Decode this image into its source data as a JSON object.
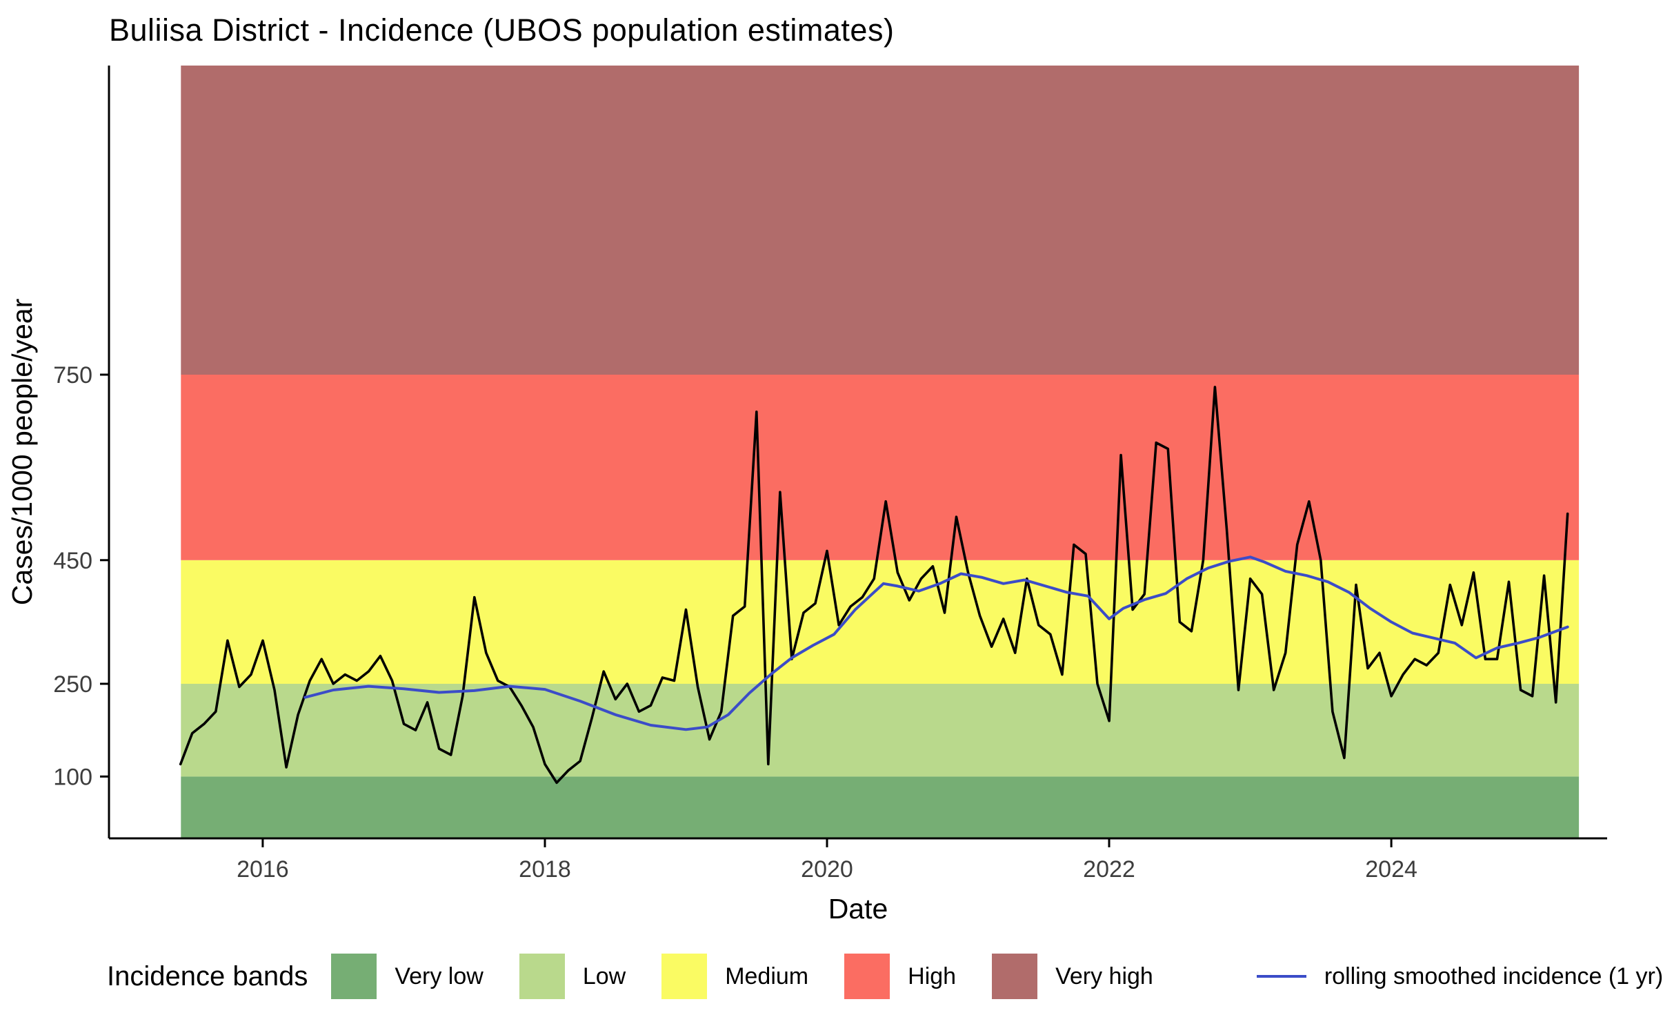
{
  "title": "Buliisa District - Incidence (UBOS population estimates)",
  "legend": {
    "title": "Incidence bands",
    "smoothed_label": "rolling smoothed incidence (1 yr)",
    "smoothed_line_color": "#3b4cc8"
  },
  "chart_data": {
    "type": "line",
    "title": "Buliisa District - Incidence (UBOS population estimates)",
    "xlabel": "Date",
    "ylabel": "Cases/1000 people/year",
    "xlim": [
      2014.91,
      2025.53
    ],
    "ylim": [
      0,
      1250
    ],
    "x_ticks": [
      2016,
      2018,
      2020,
      2022,
      2024
    ],
    "x_tick_labels": [
      "2016",
      "2018",
      "2020",
      "2022",
      "2024"
    ],
    "y_ticks": [
      100,
      250,
      450,
      750
    ],
    "y_tick_labels": [
      "100",
      "250",
      "450",
      "750"
    ],
    "grid": false,
    "legend_position": "bottom",
    "band_x": [
      2015.42,
      2025.33
    ],
    "bands": [
      {
        "label": "Very low",
        "from": 0,
        "to": 100,
        "color": "#76ae74"
      },
      {
        "label": "Low",
        "from": 100,
        "to": 250,
        "color": "#b9d98c"
      },
      {
        "label": "Medium",
        "from": 250,
        "to": 450,
        "color": "#fafb63"
      },
      {
        "label": "High",
        "from": 450,
        "to": 750,
        "color": "#fb6d62"
      },
      {
        "label": "Very high",
        "from": 750,
        "to": 1250,
        "color": "#b16c6b"
      }
    ],
    "series": [
      {
        "name": "monthly incidence",
        "data_name": "incidence-line",
        "color": "#000000",
        "width": 3.6,
        "x_start": 2015.417,
        "x_step": 0.08333,
        "values": [
          120,
          170,
          185,
          205,
          320,
          245,
          265,
          320,
          240,
          115,
          200,
          255,
          290,
          250,
          265,
          255,
          270,
          295,
          255,
          185,
          175,
          220,
          145,
          135,
          230,
          390,
          300,
          255,
          245,
          215,
          180,
          120,
          90,
          110,
          125,
          195,
          270,
          225,
          250,
          205,
          215,
          260,
          255,
          370,
          245,
          160,
          205,
          360,
          375,
          690,
          120,
          560,
          290,
          365,
          380,
          465,
          345,
          375,
          390,
          420,
          545,
          430,
          385,
          420,
          440,
          365,
          520,
          430,
          360,
          310,
          355,
          300,
          420,
          345,
          330,
          265,
          475,
          460,
          250,
          190,
          620,
          370,
          395,
          640,
          630,
          350,
          335,
          450,
          730,
          500,
          240,
          420,
          395,
          240,
          300,
          475,
          545,
          450,
          205,
          130,
          410,
          275,
          300,
          230,
          265,
          290,
          280,
          300,
          410,
          345,
          430,
          290,
          290,
          415,
          240,
          230,
          425,
          220,
          525
        ]
      },
      {
        "name": "rolling smoothed incidence (1 yr)",
        "data_name": "smoothed-line",
        "color": "#3b4cc8",
        "width": 4,
        "x": [
          2016.3,
          2016.5,
          2016.75,
          2017.0,
          2017.25,
          2017.5,
          2017.75,
          2018.0,
          2018.25,
          2018.5,
          2018.75,
          2019.0,
          2019.15,
          2019.3,
          2019.45,
          2019.6,
          2019.75,
          2019.9,
          2020.05,
          2020.2,
          2020.4,
          2020.5,
          2020.65,
          2020.8,
          2020.95,
          2021.1,
          2021.25,
          2021.4,
          2021.55,
          2021.7,
          2021.85,
          2022.0,
          2022.1,
          2022.25,
          2022.4,
          2022.55,
          2022.7,
          2022.85,
          2023.0,
          2023.1,
          2023.25,
          2023.4,
          2023.55,
          2023.7,
          2023.85,
          2024.0,
          2024.15,
          2024.3,
          2024.45,
          2024.6,
          2024.75,
          2024.9,
          2025.05,
          2025.25
        ],
        "y": [
          228,
          240,
          246,
          242,
          236,
          239,
          246,
          241,
          222,
          200,
          183,
          176,
          180,
          200,
          235,
          265,
          292,
          312,
          330,
          370,
          412,
          408,
          400,
          412,
          428,
          422,
          412,
          418,
          408,
          398,
          392,
          355,
          372,
          386,
          396,
          420,
          437,
          448,
          455,
          447,
          432,
          425,
          415,
          398,
          372,
          350,
          332,
          324,
          316,
          292,
          308,
          316,
          325,
          342
        ]
      }
    ]
  }
}
